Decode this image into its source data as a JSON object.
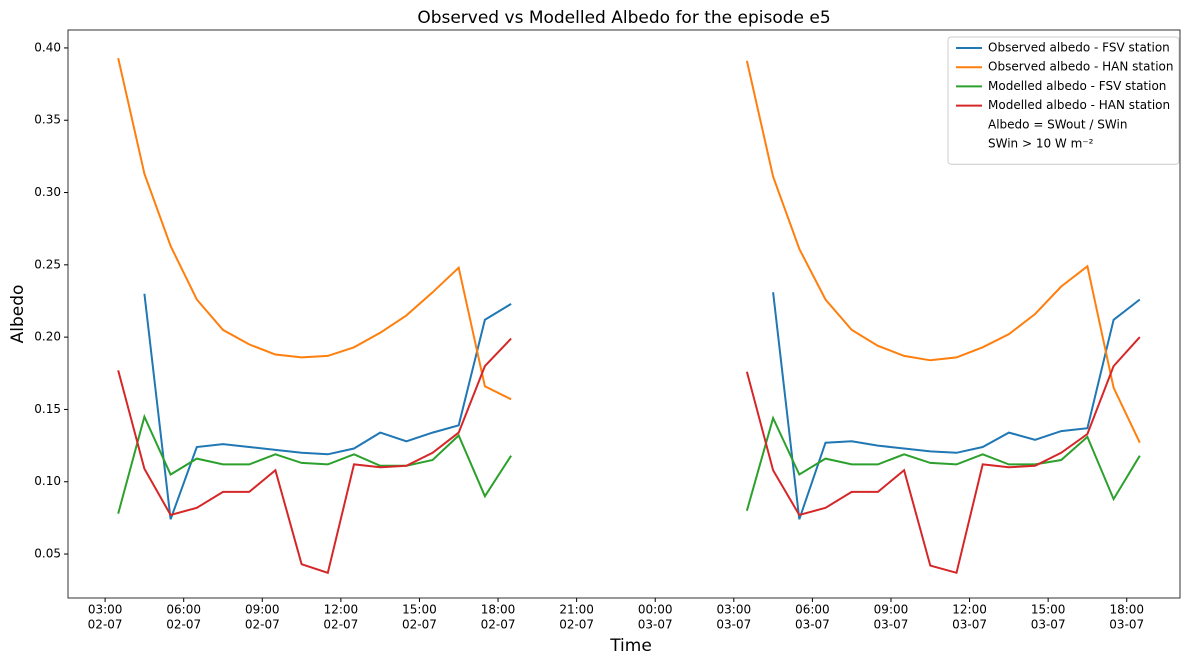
{
  "chart_data": {
    "type": "line",
    "title": "Observed vs Modelled Albedo for the episode e5",
    "x_label": "Time",
    "y_label": "Albedo",
    "x": [
      "02-07 03:30",
      "02-07 04:30",
      "02-07 05:30",
      "02-07 06:30",
      "02-07 07:30",
      "02-07 08:30",
      "02-07 09:30",
      "02-07 10:30",
      "02-07 11:30",
      "02-07 12:30",
      "02-07 13:30",
      "02-07 14:30",
      "02-07 15:30",
      "02-07 16:30",
      "02-07 17:30",
      "02-07 18:30",
      "03-07 03:30",
      "03-07 04:30",
      "03-07 05:30",
      "03-07 06:30",
      "03-07 07:30",
      "03-07 08:30",
      "03-07 09:30",
      "03-07 10:30",
      "03-07 11:30",
      "03-07 12:30",
      "03-07 13:30",
      "03-07 14:30",
      "03-07 15:30",
      "03-07 16:30",
      "03-07 17:30",
      "03-07 18:30"
    ],
    "series": [
      {
        "name": "Observed albedo - FSV station",
        "color": "#1f77b4",
        "values": [
          null,
          0.23,
          0.074,
          0.124,
          0.126,
          0.124,
          0.122,
          0.12,
          0.119,
          0.123,
          0.134,
          0.128,
          0.134,
          0.139,
          0.212,
          0.223,
          null,
          0.231,
          0.074,
          0.127,
          0.128,
          0.125,
          0.123,
          0.121,
          0.12,
          0.124,
          0.134,
          0.129,
          0.135,
          0.137,
          0.212,
          0.226
        ]
      },
      {
        "name": "Observed albedo - HAN station",
        "color": "#ff7f0e",
        "values": [
          0.393,
          0.313,
          0.263,
          0.226,
          0.205,
          0.195,
          0.188,
          0.186,
          0.187,
          0.193,
          0.203,
          0.215,
          0.231,
          0.248,
          0.166,
          0.157,
          0.391,
          0.311,
          0.261,
          0.226,
          0.205,
          0.194,
          0.187,
          0.184,
          0.186,
          0.193,
          0.202,
          0.216,
          0.235,
          0.249,
          0.165,
          0.127
        ]
      },
      {
        "name": "Modelled albedo - FSV station",
        "color": "#2ca02c",
        "values": [
          0.078,
          0.145,
          0.105,
          0.116,
          0.112,
          0.112,
          0.119,
          0.113,
          0.112,
          0.119,
          0.111,
          0.111,
          0.115,
          0.132,
          0.09,
          0.118,
          0.08,
          0.144,
          0.105,
          0.116,
          0.112,
          0.112,
          0.119,
          0.113,
          0.112,
          0.119,
          0.112,
          0.112,
          0.115,
          0.131,
          0.088,
          0.118
        ]
      },
      {
        "name": "Modelled albedo - HAN station",
        "color": "#d62728",
        "values": [
          0.177,
          0.109,
          0.077,
          0.082,
          0.093,
          0.093,
          0.108,
          0.043,
          0.037,
          0.112,
          0.11,
          0.111,
          0.12,
          0.134,
          0.18,
          0.199,
          0.176,
          0.108,
          0.077,
          0.082,
          0.093,
          0.093,
          0.108,
          0.042,
          0.037,
          0.112,
          0.11,
          0.111,
          0.12,
          0.133,
          0.18,
          0.2
        ]
      }
    ],
    "legend_notes": [
      "Albedo = SWout / SWin",
      "SWin > 10 W m⁻²"
    ],
    "legend_position": "upper right",
    "xlim": [
      "02-07 01:35",
      "03-07 20:02"
    ],
    "xticks": [
      {
        "value": "02-07 03:00",
        "label": [
          "03:00",
          "02-07"
        ]
      },
      {
        "value": "02-07 06:00",
        "label": [
          "06:00",
          "02-07"
        ]
      },
      {
        "value": "02-07 09:00",
        "label": [
          "09:00",
          "02-07"
        ]
      },
      {
        "value": "02-07 12:00",
        "label": [
          "12:00",
          "02-07"
        ]
      },
      {
        "value": "02-07 15:00",
        "label": [
          "15:00",
          "02-07"
        ]
      },
      {
        "value": "02-07 18:00",
        "label": [
          "18:00",
          "02-07"
        ]
      },
      {
        "value": "02-07 21:00",
        "label": [
          "21:00",
          "02-07"
        ]
      },
      {
        "value": "03-07 00:00",
        "label": [
          "00:00",
          "03-07"
        ]
      },
      {
        "value": "03-07 03:00",
        "label": [
          "03:00",
          "03-07"
        ]
      },
      {
        "value": "03-07 06:00",
        "label": [
          "06:00",
          "03-07"
        ]
      },
      {
        "value": "03-07 09:00",
        "label": [
          "09:00",
          "03-07"
        ]
      },
      {
        "value": "03-07 12:00",
        "label": [
          "12:00",
          "03-07"
        ]
      },
      {
        "value": "03-07 15:00",
        "label": [
          "15:00",
          "03-07"
        ]
      },
      {
        "value": "03-07 18:00",
        "label": [
          "18:00",
          "03-07"
        ]
      }
    ],
    "ylim": [
      0.0196,
      0.4124
    ],
    "yticks": [
      0.05,
      {
        "value": 0.1,
        "label": "0.10"
      },
      0.15,
      {
        "value": 0.2,
        "label": "0.20"
      },
      0.25,
      {
        "value": 0.3,
        "label": "0.30"
      },
      0.35,
      {
        "value": 0.4,
        "label": "0.40"
      }
    ],
    "grid": false
  }
}
